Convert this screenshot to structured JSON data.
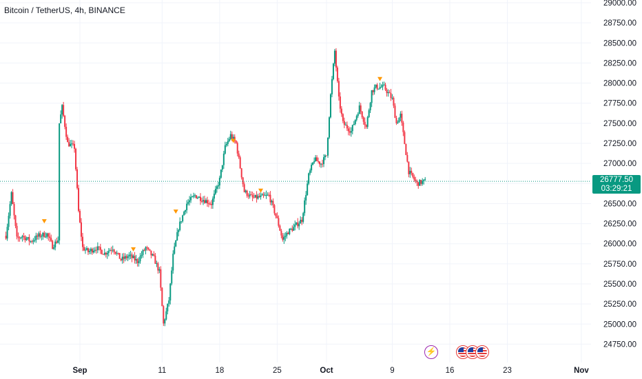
{
  "header": {
    "symbol_title": "Bitcoin / TetherUS, 4h, BINANCE"
  },
  "price_badge": {
    "price": "26777.50",
    "countdown": "03:29:21",
    "color": "#089981"
  },
  "colors": {
    "up": "#089981",
    "down": "#f23645",
    "grid": "#f0f3fa",
    "text": "#131722",
    "marker": "#ff9800",
    "last_price_line": "#089981"
  },
  "events": {
    "icons": [
      "lightning-icon",
      "us-flag-icon",
      "us-flag-icon",
      "us-flag-icon"
    ]
  },
  "chart_data": {
    "type": "candlestick",
    "title": "Bitcoin / TetherUS, 4h, BINANCE",
    "interval": "4h",
    "y_ticks": [
      "29000.00",
      "28750.00",
      "28500.00",
      "28250.00",
      "28000.00",
      "27750.00",
      "27500.00",
      "27250.00",
      "27000.00",
      "26750.00",
      "26500.00",
      "26250.00",
      "26000.00",
      "25750.00",
      "25500.00",
      "25250.00",
      "25000.00",
      "24750.00"
    ],
    "ylim": [
      24625,
      29000
    ],
    "x_ticks": [
      {
        "label": "Sep",
        "date": "2023-09-01",
        "bold": true
      },
      {
        "label": "11",
        "date": "2023-09-11",
        "bold": false
      },
      {
        "label": "18",
        "date": "2023-09-18",
        "bold": false
      },
      {
        "label": "25",
        "date": "2023-09-25",
        "bold": false
      },
      {
        "label": "Oct",
        "date": "2023-10-01",
        "bold": true
      },
      {
        "label": "9",
        "date": "2023-10-09",
        "bold": false
      },
      {
        "label": "16",
        "date": "2023-10-16",
        "bold": false
      },
      {
        "label": "23",
        "date": "2023-10-23",
        "bold": false
      },
      {
        "label": "Nov",
        "date": "2023-11-01",
        "bold": true
      }
    ],
    "last_price": 26777.5,
    "path": [
      [
        "2023-08-23T00:00",
        26100
      ],
      [
        "2023-08-23T16:00",
        26620
      ],
      [
        "2023-08-24T08:00",
        26060
      ],
      [
        "2023-08-25T00:00",
        26100
      ],
      [
        "2023-08-26T00:00",
        26030
      ],
      [
        "2023-08-27T00:00",
        26100
      ],
      [
        "2023-08-28T00:00",
        26120
      ],
      [
        "2023-08-28T16:00",
        25970
      ],
      [
        "2023-08-29T08:00",
        26050
      ],
      [
        "2023-08-29T12:00",
        27500
      ],
      [
        "2023-08-29T20:00",
        27700
      ],
      [
        "2023-08-30T12:00",
        27250
      ],
      [
        "2023-08-31T08:00",
        27200
      ],
      [
        "2023-08-31T20:00",
        26400
      ],
      [
        "2023-09-01T08:00",
        25950
      ],
      [
        "2023-09-02T00:00",
        25900
      ],
      [
        "2023-09-03T00:00",
        25950
      ],
      [
        "2023-09-04T00:00",
        25880
      ],
      [
        "2023-09-05T00:00",
        25950
      ],
      [
        "2023-09-06T00:00",
        25800
      ],
      [
        "2023-09-07T00:00",
        25850
      ],
      [
        "2023-09-08T00:00",
        25780
      ],
      [
        "2023-09-09T00:00",
        25950
      ],
      [
        "2023-09-10T00:00",
        25820
      ],
      [
        "2023-09-10T16:00",
        25650
      ],
      [
        "2023-09-11T04:00",
        25000
      ],
      [
        "2023-09-11T20:00",
        25300
      ],
      [
        "2023-09-12T08:00",
        25850
      ],
      [
        "2023-09-13T00:00",
        26200
      ],
      [
        "2023-09-14T00:00",
        26500
      ],
      [
        "2023-09-15T00:00",
        26600
      ],
      [
        "2023-09-16T00:00",
        26550
      ],
      [
        "2023-09-17T00:00",
        26500
      ],
      [
        "2023-09-18T00:00",
        26800
      ],
      [
        "2023-09-18T16:00",
        27200
      ],
      [
        "2023-09-19T08:00",
        27350
      ],
      [
        "2023-09-20T00:00",
        27250
      ],
      [
        "2023-09-21T00:00",
        26650
      ],
      [
        "2023-09-22T00:00",
        26570
      ],
      [
        "2023-09-23T00:00",
        26580
      ],
      [
        "2023-09-24T00:00",
        26600
      ],
      [
        "2023-09-25T00:00",
        26300
      ],
      [
        "2023-09-25T16:00",
        26050
      ],
      [
        "2023-09-26T08:00",
        26150
      ],
      [
        "2023-09-27T00:00",
        26200
      ],
      [
        "2023-09-28T00:00",
        26300
      ],
      [
        "2023-09-28T20:00",
        26850
      ],
      [
        "2023-09-29T12:00",
        27050
      ],
      [
        "2023-09-30T08:00",
        27000
      ],
      [
        "2023-10-01T00:00",
        27100
      ],
      [
        "2023-10-01T12:00",
        27850
      ],
      [
        "2023-10-02T00:00",
        28400
      ],
      [
        "2023-10-02T12:00",
        27800
      ],
      [
        "2023-10-03T00:00",
        27500
      ],
      [
        "2023-10-04T00:00",
        27400
      ],
      [
        "2023-10-05T00:00",
        27700
      ],
      [
        "2023-10-05T20:00",
        27450
      ],
      [
        "2023-10-06T12:00",
        27900
      ],
      [
        "2023-10-07T00:00",
        27950
      ],
      [
        "2023-10-08T00:00",
        27950
      ],
      [
        "2023-10-09T00:00",
        27800
      ],
      [
        "2023-10-09T12:00",
        27500
      ],
      [
        "2023-10-10T00:00",
        27600
      ],
      [
        "2023-10-11T00:00",
        26900
      ],
      [
        "2023-10-12T00:00",
        26750
      ],
      [
        "2023-10-13T00:00",
        26780
      ]
    ],
    "markers": [
      {
        "date": "2023-08-27T16:00",
        "price": 26280
      },
      {
        "date": "2023-09-07T12:00",
        "price": 25930
      },
      {
        "date": "2023-09-12T16:00",
        "price": 26400
      },
      {
        "date": "2023-09-19T16:00",
        "price": 27280
      },
      {
        "date": "2023-09-23T00:00",
        "price": 26660
      },
      {
        "date": "2023-10-07T12:00",
        "price": 28050
      }
    ]
  }
}
